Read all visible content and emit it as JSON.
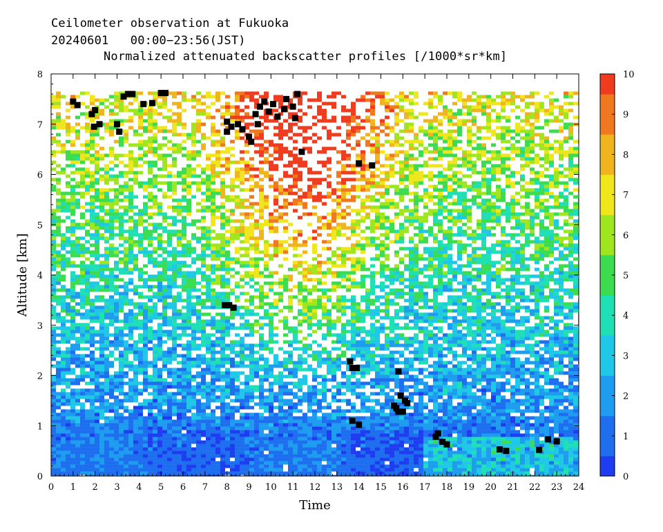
{
  "header": {
    "station_line": "Ceilometer observation at Fukuoka",
    "date_line": "20240601   00:00−23:56(JST)",
    "product_line": "Normalized attenuated backscatter profiles [/1000*sr*km]"
  },
  "chart_data": {
    "type": "heatmap",
    "title": "Normalized attenuated backscatter profiles [/1000*sr*km]",
    "xlabel": "Time",
    "ylabel": "Altitude [km]",
    "xlim": [
      0,
      24
    ],
    "ylim": [
      0,
      8
    ],
    "x_ticks": [
      "0",
      "1",
      "2",
      "3",
      "4",
      "5",
      "6",
      "7",
      "8",
      "9",
      "10",
      "11",
      "12",
      "13",
      "14",
      "15",
      "16",
      "17",
      "18",
      "19",
      "20",
      "21",
      "22",
      "23",
      "24"
    ],
    "y_ticks": [
      "0",
      "1",
      "2",
      "3",
      "4",
      "5",
      "6",
      "7",
      "8"
    ],
    "colorbar": {
      "min": 0,
      "max": 10,
      "ticks": [
        "0",
        "1",
        "2",
        "3",
        "4",
        "5",
        "6",
        "7",
        "8",
        "9",
        "10"
      ],
      "colors": [
        "#1e3cf0",
        "#1e6ef0",
        "#1e9cf0",
        "#1ec8e6",
        "#1ee0b4",
        "#3cdc50",
        "#a0e61e",
        "#f0e61e",
        "#f0b41e",
        "#f0781e",
        "#f03c1e"
      ]
    },
    "data_top_km": 7.65,
    "cloud_marks": [
      {
        "t": 1.0,
        "z": 7.45
      },
      {
        "t": 1.2,
        "z": 7.38
      },
      {
        "t": 1.85,
        "z": 7.2
      },
      {
        "t": 2.0,
        "z": 7.28
      },
      {
        "t": 1.95,
        "z": 6.95
      },
      {
        "t": 2.2,
        "z": 7.0
      },
      {
        "t": 3.0,
        "z": 7.0
      },
      {
        "t": 3.1,
        "z": 6.85
      },
      {
        "t": 3.3,
        "z": 7.55
      },
      {
        "t": 3.5,
        "z": 7.6
      },
      {
        "t": 3.7,
        "z": 7.6
      },
      {
        "t": 4.2,
        "z": 7.4
      },
      {
        "t": 4.6,
        "z": 7.42
      },
      {
        "t": 5.0,
        "z": 7.62
      },
      {
        "t": 5.2,
        "z": 7.62
      },
      {
        "t": 8.0,
        "z": 7.05
      },
      {
        "t": 8.2,
        "z": 6.95
      },
      {
        "t": 8.5,
        "z": 7.0
      },
      {
        "t": 8.0,
        "z": 6.85
      },
      {
        "t": 8.7,
        "z": 6.9
      },
      {
        "t": 9.0,
        "z": 6.75
      },
      {
        "t": 9.1,
        "z": 6.65
      },
      {
        "t": 9.3,
        "z": 7.2
      },
      {
        "t": 9.5,
        "z": 7.35
      },
      {
        "t": 9.7,
        "z": 7.45
      },
      {
        "t": 9.9,
        "z": 7.25
      },
      {
        "t": 10.1,
        "z": 7.4
      },
      {
        "t": 10.3,
        "z": 7.15
      },
      {
        "t": 10.6,
        "z": 7.3
      },
      {
        "t": 10.7,
        "z": 7.5
      },
      {
        "t": 11.0,
        "z": 7.35
      },
      {
        "t": 11.1,
        "z": 7.12
      },
      {
        "t": 11.2,
        "z": 7.6
      },
      {
        "t": 11.4,
        "z": 6.45
      },
      {
        "t": 9.4,
        "z": 7.0
      },
      {
        "t": 14.0,
        "z": 6.22
      },
      {
        "t": 14.6,
        "z": 6.18
      },
      {
        "t": 7.9,
        "z": 3.4
      },
      {
        "t": 8.1,
        "z": 3.4
      },
      {
        "t": 8.3,
        "z": 3.35
      },
      {
        "t": 13.6,
        "z": 2.28
      },
      {
        "t": 13.7,
        "z": 2.15
      },
      {
        "t": 13.9,
        "z": 2.15
      },
      {
        "t": 15.8,
        "z": 2.08
      },
      {
        "t": 13.7,
        "z": 1.1
      },
      {
        "t": 14.0,
        "z": 1.02
      },
      {
        "t": 15.6,
        "z": 1.4
      },
      {
        "t": 15.7,
        "z": 1.35
      },
      {
        "t": 15.9,
        "z": 1.6
      },
      {
        "t": 16.1,
        "z": 1.5
      },
      {
        "t": 16.2,
        "z": 1.45
      },
      {
        "t": 15.8,
        "z": 1.28
      },
      {
        "t": 16.0,
        "z": 1.28
      },
      {
        "t": 17.5,
        "z": 0.78
      },
      {
        "t": 17.6,
        "z": 0.85
      },
      {
        "t": 17.8,
        "z": 0.68
      },
      {
        "t": 18.0,
        "z": 0.63
      },
      {
        "t": 20.4,
        "z": 0.53
      },
      {
        "t": 20.7,
        "z": 0.5
      },
      {
        "t": 22.2,
        "z": 0.52
      },
      {
        "t": 22.6,
        "z": 0.73
      },
      {
        "t": 23.0,
        "z": 0.69
      }
    ]
  }
}
